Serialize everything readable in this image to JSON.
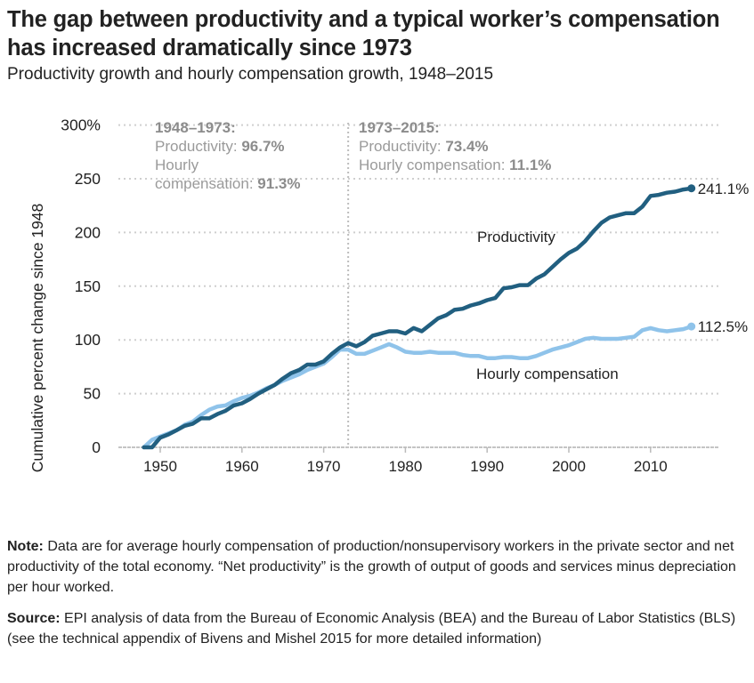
{
  "title": "The gap between productivity and a typical worker’s compensation has increased dramatically since 1973",
  "subtitle": "Productivity growth and hourly compensation growth, 1948–2015",
  "note": {
    "label": "Note:",
    "text": " Data are for average hourly compensation of production/nonsupervisory workers in the private sector and net productivity of the total economy. “Net productivity” is the growth of output of goods and services minus depreciation per hour worked."
  },
  "source": {
    "label": "Source:",
    "text": " EPI analysis of data from the Bureau of Economic Analysis (BEA) and the Bureau of Labor Statistics (BLS) (see the technical appendix of Bivens and Mishel 2015 for more detailed information)"
  },
  "chart_data": {
    "type": "line",
    "ylabel": "Cumulative percent change since 1948",
    "xlabel": "",
    "ylim": [
      0,
      300
    ],
    "xlim": [
      1945,
      2018
    ],
    "yticks": [
      0,
      50,
      100,
      150,
      200,
      250,
      300
    ],
    "ytick_labels": [
      "0",
      "50",
      "100",
      "150",
      "200",
      "250",
      "300%"
    ],
    "xticks": [
      1950,
      1960,
      1970,
      1980,
      1990,
      2000,
      2010
    ],
    "xtick_labels": [
      "1950",
      "1960",
      "1970",
      "1980",
      "1990",
      "2000",
      "2010"
    ],
    "grid": "horizontal-dotted",
    "divider_year": 1973,
    "annotations": [
      {
        "period": "1948–1973:",
        "lines": [
          {
            "label": "Productivity: ",
            "value": "96.7%"
          },
          {
            "label": "Hourly",
            "value": ""
          },
          {
            "label": "compensation: ",
            "value": "91.3%"
          }
        ]
      },
      {
        "period": "1973–2015:",
        "lines": [
          {
            "label": "Productivity: ",
            "value": "73.4%"
          },
          {
            "label": "Hourly compensation: ",
            "value": "11.1%"
          }
        ]
      }
    ],
    "x": [
      1948,
      1949,
      1950,
      1951,
      1952,
      1953,
      1954,
      1955,
      1956,
      1957,
      1958,
      1959,
      1960,
      1961,
      1962,
      1963,
      1964,
      1965,
      1966,
      1967,
      1968,
      1969,
      1970,
      1971,
      1972,
      1973,
      1974,
      1975,
      1976,
      1977,
      1978,
      1979,
      1980,
      1981,
      1982,
      1983,
      1984,
      1985,
      1986,
      1987,
      1988,
      1989,
      1990,
      1991,
      1992,
      1993,
      1994,
      1995,
      1996,
      1997,
      1998,
      1999,
      2000,
      2001,
      2002,
      2003,
      2004,
      2005,
      2006,
      2007,
      2008,
      2009,
      2010,
      2011,
      2012,
      2013,
      2014,
      2015
    ],
    "series": [
      {
        "name": "Productivity",
        "color": "#215f80",
        "end_label": "241.1%",
        "values": [
          0,
          0,
          9,
          12,
          16,
          20,
          22,
          27,
          27,
          31,
          34,
          39,
          41,
          45,
          50,
          54,
          58,
          64,
          69,
          72,
          77,
          77,
          80,
          87,
          93,
          97,
          94,
          98,
          104,
          106,
          108,
          108,
          106,
          111,
          108,
          114,
          120,
          123,
          128,
          129,
          132,
          134,
          137,
          139,
          148,
          149,
          151,
          151,
          157,
          161,
          168,
          175,
          181,
          185,
          192,
          201,
          209,
          214,
          216,
          218,
          218,
          224,
          234,
          235,
          237,
          238,
          240,
          241.1
        ]
      },
      {
        "name": "Hourly compensation",
        "color": "#8fc3ea",
        "end_label": "112.5%",
        "values": [
          0,
          7,
          10,
          13,
          16,
          21,
          24,
          30,
          35,
          38,
          39,
          43,
          46,
          48,
          51,
          55,
          58,
          62,
          65,
          68,
          72,
          75,
          78,
          84,
          91,
          91,
          87,
          87,
          90,
          93,
          96,
          93,
          89,
          88,
          88,
          89,
          88,
          88,
          88,
          86,
          85,
          85,
          83,
          83,
          84,
          84,
          83,
          83,
          85,
          88,
          91,
          93,
          95,
          98,
          101,
          102,
          101,
          101,
          101,
          102,
          103,
          109,
          111,
          109,
          108,
          109,
          110,
          112.5
        ]
      }
    ]
  }
}
